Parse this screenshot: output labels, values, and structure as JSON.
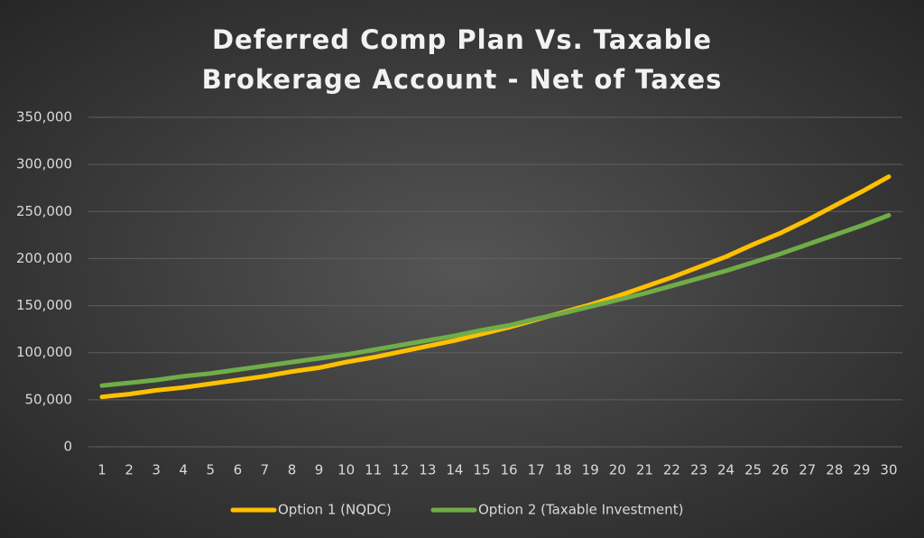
{
  "chart_data": {
    "type": "line",
    "title": "Deferred Comp Plan Vs. Taxable Brokerage Account - Net of Taxes",
    "categories": [
      "1",
      "2",
      "3",
      "4",
      "5",
      "6",
      "7",
      "8",
      "9",
      "10",
      "11",
      "12",
      "13",
      "14",
      "15",
      "16",
      "17",
      "18",
      "19",
      "20",
      "21",
      "22",
      "23",
      "24",
      "25",
      "26",
      "27",
      "28",
      "29",
      "30"
    ],
    "series": [
      {
        "name": "Option 1 (NQDC)",
        "color": "#ffc000",
        "values": [
          53000,
          56000,
          60000,
          63000,
          67000,
          71000,
          75000,
          80000,
          84000,
          90000,
          95000,
          101000,
          107000,
          113000,
          120000,
          127000,
          135000,
          143000,
          151000,
          160000,
          170000,
          180000,
          191000,
          202000,
          215000,
          227000,
          241000,
          256000,
          271000,
          287000
        ]
      },
      {
        "name": "Option 2 (Taxable Investment)",
        "color": "#70ad47",
        "values": [
          65000,
          68000,
          71000,
          75000,
          78000,
          82000,
          86000,
          90000,
          94000,
          98000,
          103000,
          108000,
          113000,
          118000,
          124000,
          129000,
          136000,
          142000,
          149000,
          156000,
          163000,
          171000,
          179000,
          187000,
          196000,
          205000,
          215000,
          225000,
          235000,
          246000
        ]
      }
    ],
    "ylim": [
      0,
      350000
    ],
    "yticks": [
      0,
      {
        "value": 50000,
        "label": "50,000"
      },
      {
        "value": 100000,
        "label": "100,000"
      },
      {
        "value": 150000,
        "label": "150,000"
      },
      {
        "value": 200000,
        "label": "200,000"
      },
      {
        "value": 250000,
        "label": "250,000"
      },
      {
        "value": 300000,
        "label": "300,000"
      },
      {
        "value": 350000,
        "label": "350,000"
      }
    ],
    "grid": true,
    "legend": "bottom"
  }
}
